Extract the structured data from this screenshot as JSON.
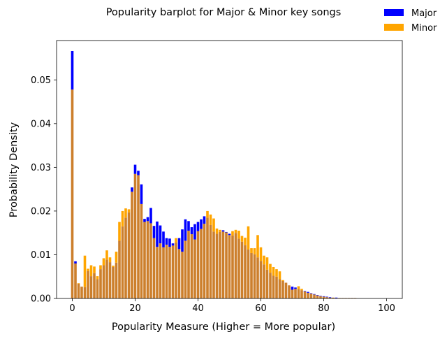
{
  "chart_data": {
    "type": "bar",
    "title": "Popularity barplot for Major & Minor key songs",
    "xlabel": "Popularity Measure (Higher = More popular)",
    "ylabel": "Probability Density",
    "xlim": [
      -5,
      105
    ],
    "ylim": [
      0,
      0.059
    ],
    "xticks": [
      "0",
      "20",
      "40",
      "60",
      "80",
      "100"
    ],
    "yticks": [
      "0.00",
      "0.01",
      "0.02",
      "0.03",
      "0.04",
      "0.05"
    ],
    "legend_position": "top-right",
    "colors": {
      "Major": "#0000ff",
      "Minor": "#ffa500",
      "overlap": "#cc7f2c"
    },
    "x": [
      0,
      1,
      2,
      3,
      4,
      5,
      6,
      7,
      8,
      9,
      10,
      11,
      12,
      13,
      14,
      15,
      16,
      17,
      18,
      19,
      20,
      21,
      22,
      23,
      24,
      25,
      26,
      27,
      28,
      29,
      30,
      31,
      32,
      33,
      34,
      35,
      36,
      37,
      38,
      39,
      40,
      41,
      42,
      43,
      44,
      45,
      46,
      47,
      48,
      49,
      50,
      51,
      52,
      53,
      54,
      55,
      56,
      57,
      58,
      59,
      60,
      61,
      62,
      63,
      64,
      65,
      66,
      67,
      68,
      69,
      70,
      71,
      72,
      73,
      74,
      75,
      76,
      77,
      78,
      79,
      80,
      81,
      82,
      83,
      84,
      85,
      86,
      87,
      88,
      89,
      90
    ],
    "series": [
      {
        "name": "Major",
        "values": [
          0.0566,
          0.0085,
          0.0034,
          0.0027,
          0.0026,
          0.0063,
          0.0051,
          0.0058,
          0.0044,
          0.0067,
          0.0076,
          0.0089,
          0.0083,
          0.0072,
          0.0082,
          0.0132,
          0.0165,
          0.0185,
          0.0197,
          0.0254,
          0.0306,
          0.0292,
          0.0261,
          0.0182,
          0.0186,
          0.0207,
          0.0166,
          0.0176,
          0.0167,
          0.0153,
          0.0138,
          0.0137,
          0.0126,
          0.0128,
          0.0138,
          0.0158,
          0.0181,
          0.0177,
          0.0163,
          0.017,
          0.0175,
          0.0181,
          0.0188,
          0.0185,
          0.0168,
          0.0153,
          0.0148,
          0.0152,
          0.0156,
          0.0152,
          0.0148,
          0.0144,
          0.015,
          0.0137,
          0.013,
          0.0122,
          0.0112,
          0.0104,
          0.0101,
          0.0094,
          0.0086,
          0.0078,
          0.0066,
          0.0059,
          0.0052,
          0.005,
          0.0044,
          0.004,
          0.0036,
          0.003,
          0.0027,
          0.0025,
          0.0022,
          0.0019,
          0.0017,
          0.0015,
          0.0012,
          0.001,
          0.0008,
          0.0006,
          0.0005,
          0.0004,
          0.0003,
          0.0002,
          0.0002,
          0.0001,
          0.0001,
          0.0001,
          0.0001,
          0.0001,
          0.0001
        ]
      },
      {
        "name": "Minor",
        "values": [
          0.0478,
          0.008,
          0.0035,
          0.0027,
          0.0098,
          0.0068,
          0.0076,
          0.0073,
          0.0051,
          0.0076,
          0.0092,
          0.011,
          0.0094,
          0.0075,
          0.0107,
          0.0175,
          0.02,
          0.0206,
          0.0204,
          0.0244,
          0.0285,
          0.0282,
          0.0216,
          0.0175,
          0.0177,
          0.0172,
          0.0138,
          0.0118,
          0.0126,
          0.0117,
          0.0123,
          0.0118,
          0.0121,
          0.0138,
          0.0113,
          0.0107,
          0.0132,
          0.0155,
          0.0147,
          0.0135,
          0.0154,
          0.0159,
          0.0171,
          0.02,
          0.0192,
          0.0183,
          0.016,
          0.0157,
          0.0153,
          0.0151,
          0.0145,
          0.0154,
          0.0157,
          0.0155,
          0.0143,
          0.0139,
          0.0165,
          0.0115,
          0.0115,
          0.0145,
          0.0117,
          0.0098,
          0.0094,
          0.0079,
          0.0072,
          0.0067,
          0.0062,
          0.0042,
          0.0036,
          0.003,
          0.002,
          0.0022,
          0.0028,
          0.0022,
          0.0016,
          0.0013,
          0.0011,
          0.0009,
          0.0007,
          0.0005,
          0.0004,
          0.0003,
          0.0002,
          0.0002,
          0.0001,
          0.0001,
          0.0001,
          0.0001,
          0.0001,
          0.0001,
          0.0001
        ]
      }
    ]
  }
}
